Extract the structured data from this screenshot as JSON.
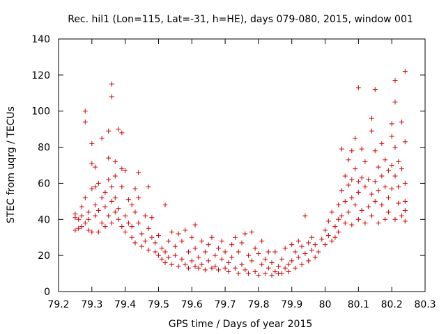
{
  "chart_data": {
    "type": "scatter",
    "title": "Rec. hil1 (Lon=115, Lat=-31, h=HE), days 079-080, 2015, window 001",
    "xlabel": "GPS time / Days of year 2015",
    "ylabel": "STEC from uqrg / TECUs",
    "xlim": [
      79.2,
      80.3
    ],
    "ylim": [
      0,
      140
    ],
    "x_ticks": [
      "79.2",
      "79.3",
      "79.4",
      "79.5",
      "79.6",
      "79.7",
      "79.8",
      "79.9",
      "80",
      "80.1",
      "80.2",
      "80.3"
    ],
    "y_ticks": [
      "0",
      "20",
      "40",
      "60",
      "80",
      "100",
      "120",
      "140"
    ],
    "grid": false,
    "legend": "none",
    "marker": "+",
    "color": "#cc0000",
    "series": [
      {
        "points": [
          [
            79.25,
            34
          ],
          [
            79.25,
            41
          ],
          [
            79.25,
            43
          ],
          [
            79.26,
            40
          ],
          [
            79.26,
            35
          ],
          [
            79.27,
            36
          ],
          [
            79.27,
            42
          ],
          [
            79.27,
            47
          ],
          [
            79.28,
            38
          ],
          [
            79.28,
            52
          ],
          [
            79.28,
            100
          ],
          [
            79.28,
            94
          ],
          [
            79.29,
            44
          ],
          [
            79.29,
            40
          ],
          [
            79.29,
            34
          ],
          [
            79.3,
            57
          ],
          [
            79.3,
            71
          ],
          [
            79.3,
            82
          ],
          [
            79.3,
            33
          ],
          [
            79.31,
            48
          ],
          [
            79.31,
            42
          ],
          [
            79.31,
            58
          ],
          [
            79.31,
            69
          ],
          [
            79.32,
            33
          ],
          [
            79.32,
            45
          ],
          [
            79.32,
            60
          ],
          [
            79.33,
            52
          ],
          [
            79.33,
            38
          ],
          [
            79.33,
            85
          ],
          [
            79.34,
            55
          ],
          [
            79.34,
            47
          ],
          [
            79.34,
            36
          ],
          [
            79.35,
            62
          ],
          [
            79.35,
            74
          ],
          [
            79.35,
            89
          ],
          [
            79.35,
            42
          ],
          [
            79.36,
            50
          ],
          [
            79.36,
            58
          ],
          [
            79.36,
            38
          ],
          [
            79.36,
            115
          ],
          [
            79.36,
            108
          ],
          [
            79.37,
            44
          ],
          [
            79.37,
            64
          ],
          [
            79.37,
            72
          ],
          [
            79.37,
            52
          ],
          [
            79.38,
            90
          ],
          [
            79.38,
            40
          ],
          [
            79.38,
            46
          ],
          [
            79.39,
            88
          ],
          [
            79.39,
            68
          ],
          [
            79.39,
            36
          ],
          [
            79.39,
            58
          ],
          [
            79.4,
            33
          ],
          [
            79.4,
            42
          ],
          [
            79.4,
            67
          ],
          [
            79.41,
            51
          ],
          [
            79.41,
            38
          ],
          [
            79.42,
            48
          ],
          [
            79.42,
            30
          ],
          [
            79.42,
            36
          ],
          [
            79.43,
            57
          ],
          [
            79.43,
            44
          ],
          [
            79.43,
            27
          ],
          [
            79.44,
            66
          ],
          [
            79.44,
            52
          ],
          [
            79.44,
            38
          ],
          [
            79.45,
            32
          ],
          [
            79.45,
            25
          ],
          [
            79.46,
            42
          ],
          [
            79.46,
            28
          ],
          [
            79.47,
            58
          ],
          [
            79.47,
            35
          ],
          [
            79.47,
            23
          ],
          [
            79.48,
            41
          ],
          [
            79.48,
            30
          ],
          [
            79.49,
            22
          ],
          [
            79.49,
            27
          ],
          [
            79.5,
            20
          ],
          [
            79.5,
            31
          ],
          [
            79.51,
            24
          ],
          [
            79.51,
            18
          ],
          [
            79.52,
            48
          ],
          [
            79.52,
            22
          ],
          [
            79.52,
            16
          ],
          [
            79.53,
            28
          ],
          [
            79.53,
            19
          ],
          [
            79.54,
            33
          ],
          [
            79.54,
            15
          ],
          [
            79.55,
            25
          ],
          [
            79.55,
            20
          ],
          [
            79.56,
            32
          ],
          [
            79.56,
            14
          ],
          [
            79.57,
            18
          ],
          [
            79.57,
            28
          ],
          [
            79.58,
            34
          ],
          [
            79.58,
            15
          ],
          [
            79.59,
            22
          ],
          [
            79.59,
            13
          ],
          [
            79.6,
            30
          ],
          [
            79.6,
            17
          ],
          [
            79.61,
            37
          ],
          [
            79.61,
            14
          ],
          [
            79.61,
            24
          ],
          [
            79.62,
            19
          ],
          [
            79.62,
            13
          ],
          [
            79.63,
            28
          ],
          [
            79.63,
            15
          ],
          [
            79.64,
            22
          ],
          [
            79.64,
            12
          ],
          [
            79.65,
            26
          ],
          [
            79.65,
            17
          ],
          [
            79.66,
            30
          ],
          [
            79.66,
            13
          ],
          [
            79.67,
            20
          ],
          [
            79.67,
            14
          ],
          [
            79.68,
            24
          ],
          [
            79.68,
            12
          ],
          [
            79.69,
            18
          ],
          [
            79.69,
            28
          ],
          [
            79.7,
            13
          ],
          [
            79.7,
            22
          ],
          [
            79.71,
            16
          ],
          [
            79.71,
            11
          ],
          [
            79.72,
            26
          ],
          [
            79.72,
            19
          ],
          [
            79.73,
            13
          ],
          [
            79.73,
            30
          ],
          [
            79.74,
            22
          ],
          [
            79.74,
            10
          ],
          [
            79.75,
            15
          ],
          [
            79.75,
            27
          ],
          [
            79.76,
            12
          ],
          [
            79.76,
            32
          ],
          [
            79.77,
            20
          ],
          [
            79.77,
            10
          ],
          [
            79.78,
            33
          ],
          [
            79.78,
            17
          ],
          [
            79.79,
            24
          ],
          [
            79.79,
            11
          ],
          [
            79.8,
            21
          ],
          [
            79.8,
            9
          ],
          [
            79.81,
            15
          ],
          [
            79.81,
            28
          ],
          [
            79.82,
            10
          ],
          [
            79.82,
            18
          ],
          [
            79.83,
            13
          ],
          [
            79.83,
            22
          ],
          [
            79.84,
            9
          ],
          [
            79.84,
            16
          ],
          [
            79.85,
            11
          ],
          [
            79.85,
            22
          ],
          [
            79.86,
            14
          ],
          [
            79.86,
            10
          ],
          [
            79.87,
            18
          ],
          [
            79.87,
            10
          ],
          [
            79.88,
            13
          ],
          [
            79.88,
            24
          ],
          [
            79.89,
            15
          ],
          [
            79.89,
            11
          ],
          [
            79.9,
            26
          ],
          [
            79.9,
            17
          ],
          [
            79.91,
            13
          ],
          [
            79.91,
            22
          ],
          [
            79.92,
            28
          ],
          [
            79.92,
            19
          ],
          [
            79.93,
            15
          ],
          [
            79.93,
            25
          ],
          [
            79.94,
            42
          ],
          [
            79.94,
            21
          ],
          [
            79.95,
            27
          ],
          [
            79.95,
            17
          ],
          [
            79.96,
            23
          ],
          [
            79.96,
            30
          ],
          [
            79.97,
            19
          ],
          [
            79.97,
            26
          ],
          [
            79.98,
            22
          ],
          [
            79.99,
            29
          ],
          [
            80.0,
            26
          ],
          [
            80.0,
            34
          ],
          [
            80.01,
            31
          ],
          [
            80.01,
            39
          ],
          [
            80.02,
            28
          ],
          [
            80.02,
            44
          ],
          [
            80.03,
            36
          ],
          [
            80.03,
            30
          ],
          [
            80.04,
            48
          ],
          [
            80.04,
            40
          ],
          [
            80.04,
            33
          ],
          [
            80.05,
            56
          ],
          [
            80.05,
            42
          ],
          [
            80.05,
            79
          ],
          [
            80.06,
            64
          ],
          [
            80.06,
            50
          ],
          [
            80.06,
            38
          ],
          [
            80.07,
            73
          ],
          [
            80.07,
            59
          ],
          [
            80.07,
            44
          ],
          [
            80.08,
            78
          ],
          [
            80.08,
            62
          ],
          [
            80.08,
            52
          ],
          [
            80.08,
            37
          ],
          [
            80.09,
            85
          ],
          [
            80.09,
            68
          ],
          [
            80.09,
            48
          ],
          [
            80.1,
            113
          ],
          [
            80.1,
            61
          ],
          [
            80.1,
            40
          ],
          [
            80.1,
            55
          ],
          [
            80.11,
            79
          ],
          [
            80.11,
            63
          ],
          [
            80.11,
            45
          ],
          [
            80.12,
            72
          ],
          [
            80.12,
            58
          ],
          [
            80.12,
            38
          ],
          [
            80.13,
            62
          ],
          [
            80.13,
            47
          ],
          [
            80.14,
            96
          ],
          [
            80.14,
            89
          ],
          [
            80.14,
            54
          ],
          [
            80.14,
            42
          ],
          [
            80.15,
            112
          ],
          [
            80.15,
            78
          ],
          [
            80.15,
            61
          ],
          [
            80.15,
            50
          ],
          [
            80.16,
            69
          ],
          [
            80.16,
            56
          ],
          [
            80.16,
            38
          ],
          [
            80.17,
            82
          ],
          [
            80.17,
            64
          ],
          [
            80.17,
            48
          ],
          [
            80.18,
            73
          ],
          [
            80.18,
            58
          ],
          [
            80.18,
            40
          ],
          [
            80.19,
            67
          ],
          [
            80.19,
            52
          ],
          [
            80.19,
            44
          ],
          [
            80.2,
            93
          ],
          [
            80.2,
            86
          ],
          [
            80.2,
            70
          ],
          [
            80.2,
            57
          ],
          [
            80.21,
            117
          ],
          [
            80.21,
            105
          ],
          [
            80.21,
            80
          ],
          [
            80.21,
            64
          ],
          [
            80.21,
            40
          ],
          [
            80.22,
            72
          ],
          [
            80.22,
            49
          ],
          [
            80.22,
            58
          ],
          [
            80.23,
            94
          ],
          [
            80.23,
            68
          ],
          [
            80.23,
            42
          ],
          [
            80.24,
            122
          ],
          [
            80.24,
            83
          ],
          [
            80.24,
            60
          ],
          [
            80.24,
            50
          ],
          [
            80.24,
            39
          ],
          [
            80.24,
            45
          ]
        ]
      }
    ]
  }
}
